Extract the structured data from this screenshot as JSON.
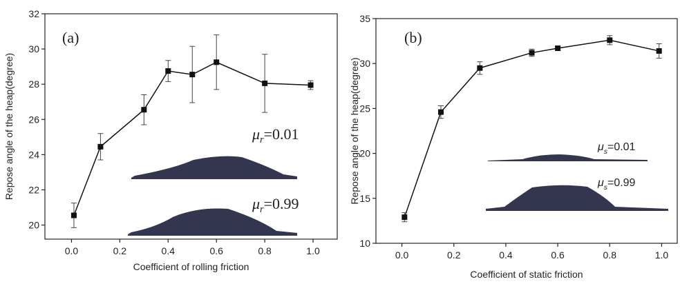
{
  "chart_data": [
    {
      "type": "line",
      "label": "(a)",
      "x_label": "Coefficient of rolling friction",
      "y_label": "Repose angle of the heap(degree)",
      "color": "#111111",
      "x": [
        0.01,
        0.12,
        0.3,
        0.4,
        0.5,
        0.6,
        0.8,
        0.99
      ],
      "values": [
        20.55,
        24.45,
        26.55,
        28.75,
        28.55,
        29.25,
        28.05,
        27.95
      ],
      "errors": [
        0.7,
        0.75,
        0.85,
        0.6,
        1.6,
        1.55,
        1.65,
        0.25
      ],
      "xlim": [
        -0.11,
        1.1
      ],
      "xticks": [
        {
          "value": 0,
          "label": "0.0"
        },
        0.2,
        0.4,
        0.6,
        0.8,
        {
          "value": 1,
          "label": "1.0"
        }
      ],
      "ylim": [
        19.2,
        32
      ],
      "yticks": [
        20,
        22,
        24,
        26,
        28,
        30,
        32
      ],
      "annotations": [
        {
          "symbol": "μ",
          "sub": "r",
          "text": "=0.01"
        },
        {
          "symbol": "μ",
          "sub": "r",
          "text": "=0.99"
        }
      ]
    },
    {
      "type": "line",
      "label": "(b)",
      "x_label": "Coefficient of static friction",
      "y_label": "Repose angle of the heap(degree)",
      "color": "#111111",
      "x": [
        0.01,
        0.15,
        0.3,
        0.5,
        0.6,
        0.8,
        0.99
      ],
      "values": [
        12.9,
        24.6,
        29.5,
        31.2,
        31.7,
        32.6,
        31.4
      ],
      "errors": [
        0.5,
        0.7,
        0.7,
        0.4,
        0.2,
        0.5,
        0.8
      ],
      "xlim": [
        -0.1,
        1.06
      ],
      "xticks": [
        {
          "value": 0,
          "label": "0.0"
        },
        0.2,
        0.4,
        0.6,
        0.8,
        {
          "value": 1,
          "label": "1.0"
        }
      ],
      "ylim": [
        10,
        35
      ],
      "yticks": [
        10,
        15,
        20,
        25,
        30,
        35
      ],
      "annotations": [
        {
          "symbol": "μ",
          "sub": "s",
          "text": "=0.01"
        },
        {
          "symbol": "μ",
          "sub": "s",
          "text": "=0.99"
        }
      ]
    }
  ]
}
